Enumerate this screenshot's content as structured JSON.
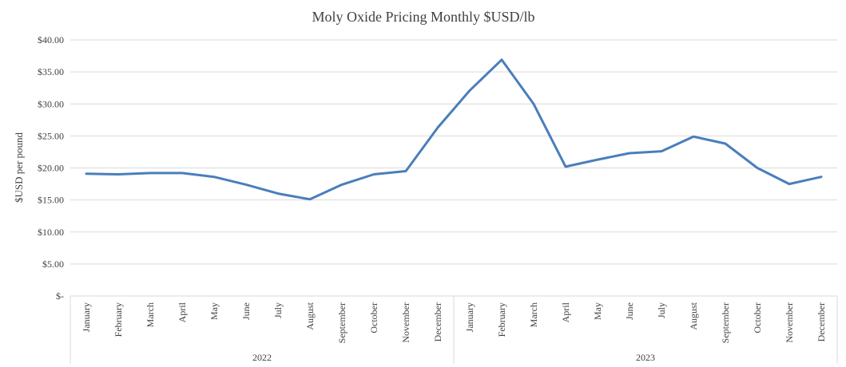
{
  "chart_data": {
    "type": "line",
    "title": "Moly Oxide Pricing Monthly $USD/lb",
    "ylabel": "$USD per pound",
    "xlabel": "",
    "ylim": [
      0,
      40
    ],
    "yticks": [
      0,
      5,
      10,
      15,
      20,
      25,
      30,
      35,
      40
    ],
    "ytick_labels": [
      "$-",
      "$5.00",
      "$10.00",
      "$15.00",
      "$20.00",
      "$25.00",
      "$30.00",
      "$35.00",
      "$40.00"
    ],
    "grid": true,
    "groups": [
      {
        "label": "2022",
        "categories": [
          "January",
          "February",
          "March",
          "April",
          "May",
          "June",
          "July",
          "August",
          "September",
          "October",
          "November",
          "December"
        ]
      },
      {
        "label": "2023",
        "categories": [
          "January",
          "February",
          "March",
          "April",
          "May",
          "June",
          "July",
          "August",
          "September",
          "October",
          "November",
          "December"
        ]
      }
    ],
    "series": [
      {
        "color": "#4a7ebb",
        "values": [
          19.1,
          19.0,
          19.2,
          19.2,
          18.6,
          17.4,
          16.0,
          15.1,
          17.4,
          19.0,
          19.5,
          26.3,
          32.1,
          36.9,
          30.0,
          20.2,
          21.3,
          22.3,
          22.6,
          24.9,
          23.8,
          20.0,
          17.5,
          18.6
        ]
      }
    ]
  }
}
